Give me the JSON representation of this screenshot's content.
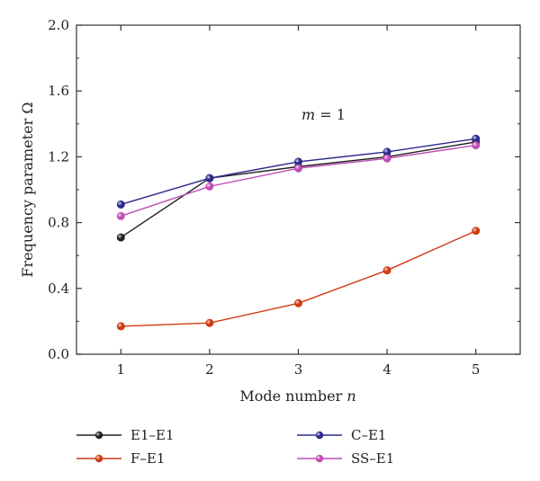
{
  "chart_data": {
    "type": "line",
    "xlabel": "Mode number n",
    "ylabel": "Frequency parameter Ω",
    "annotation": "m = 1",
    "x": [
      1,
      2,
      3,
      4,
      5
    ],
    "x_ticks": [
      "1",
      "2",
      "3",
      "4",
      "5"
    ],
    "xlim": [
      0.5,
      5.5
    ],
    "ylim": [
      0.0,
      2.0
    ],
    "y_ticks": [
      "0.0",
      "0.4",
      "0.8",
      "1.2",
      "1.6",
      "2.0"
    ],
    "y_tick_values": [
      0.0,
      0.4,
      0.8,
      1.2,
      1.6,
      2.0
    ],
    "grid": false,
    "legend_position": "bottom",
    "series": [
      {
        "name": "E1–E1",
        "color": "#222222",
        "values": [
          0.71,
          1.07,
          1.14,
          1.2,
          1.29
        ]
      },
      {
        "name": "F–E1",
        "color": "#d03a12",
        "values": [
          0.17,
          0.19,
          0.31,
          0.51,
          0.75
        ]
      },
      {
        "name": "C–E1",
        "color": "#2b2a8c",
        "values": [
          0.91,
          1.07,
          1.17,
          1.23,
          1.31
        ]
      },
      {
        "name": "SS–E1",
        "color": "#c24cb8",
        "values": [
          0.84,
          1.02,
          1.13,
          1.19,
          1.27
        ]
      }
    ]
  }
}
